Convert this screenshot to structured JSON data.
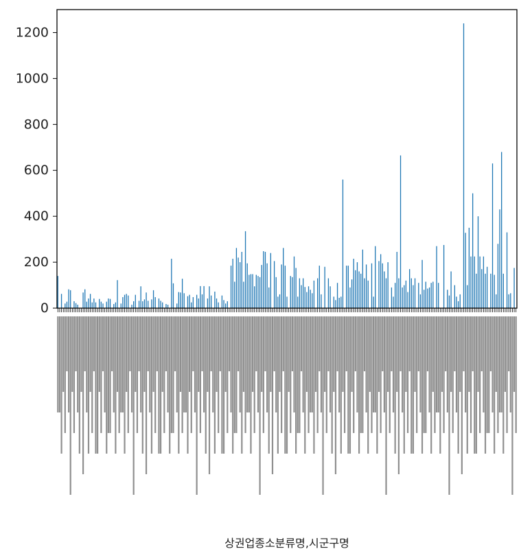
{
  "chart_data": {
    "type": "bar",
    "title": "",
    "xlabel": "상권업종소분류명,시군구명",
    "ylabel": "",
    "ylim": [
      0,
      1300
    ],
    "yticks": [
      0,
      200,
      400,
      600,
      800,
      1000,
      1200
    ],
    "grid": false,
    "legend": "none",
    "bar_color": "#1f77b4",
    "category_tick_labels_legible": false,
    "values": [
      140,
      0,
      62,
      0,
      20,
      28,
      82,
      78,
      0,
      30,
      22,
      15,
      0,
      0,
      68,
      82,
      28,
      42,
      62,
      25,
      42,
      25,
      0,
      40,
      28,
      20,
      0,
      28,
      42,
      40,
      0,
      18,
      25,
      122,
      0,
      20,
      48,
      58,
      62,
      55,
      0,
      15,
      30,
      58,
      0,
      32,
      95,
      30,
      38,
      68,
      32,
      0,
      38,
      78,
      48,
      0,
      42,
      32,
      25,
      0,
      18,
      15,
      0,
      215,
      108,
      0,
      20,
      70,
      68,
      128,
      65,
      0,
      52,
      58,
      25,
      48,
      0,
      58,
      42,
      96,
      60,
      96,
      0,
      42,
      95,
      55,
      0,
      72,
      42,
      25,
      0,
      55,
      35,
      20,
      30,
      0,
      185,
      215,
      115,
      262,
      220,
      200,
      245,
      115,
      335,
      195,
      145,
      148,
      148,
      95,
      145,
      140,
      135,
      188,
      248,
      245,
      195,
      90,
      240,
      0,
      205,
      135,
      50,
      60,
      190,
      262,
      185,
      50,
      0,
      140,
      135,
      225,
      175,
      50,
      130,
      100,
      130,
      92,
      70,
      95,
      80,
      65,
      120,
      0,
      130,
      185,
      60,
      0,
      180,
      0,
      130,
      95,
      0,
      50,
      35,
      110,
      45,
      50,
      560,
      0,
      185,
      185,
      90,
      125,
      215,
      165,
      200,
      160,
      150,
      255,
      130,
      190,
      120,
      0,
      195,
      50,
      270,
      0,
      205,
      235,
      195,
      160,
      130,
      200,
      0,
      90,
      50,
      110,
      245,
      130,
      665,
      90,
      100,
      120,
      70,
      170,
      130,
      100,
      130,
      0,
      110,
      60,
      210,
      80,
      115,
      85,
      90,
      110,
      115,
      0,
      270,
      110,
      0,
      0,
      275,
      0,
      80,
      55,
      160,
      0,
      100,
      50,
      30,
      60,
      0,
      1240,
      328,
      100,
      350,
      225,
      500,
      225,
      150,
      400,
      225,
      170,
      225,
      150,
      180,
      0,
      150,
      630,
      145,
      60,
      280,
      430,
      680,
      150,
      0,
      330,
      60,
      65,
      0,
      175,
      0
    ]
  }
}
